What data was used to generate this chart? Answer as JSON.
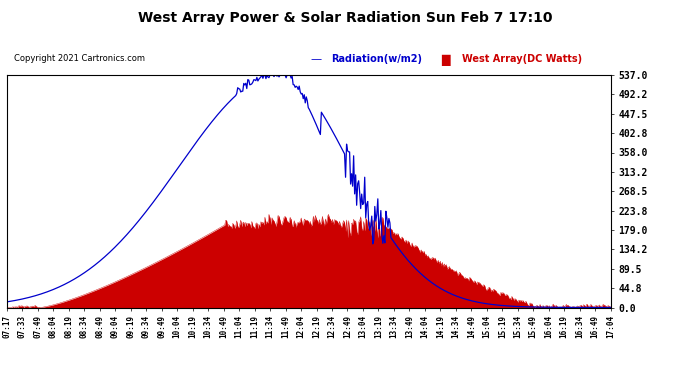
{
  "title": "West Array Power & Solar Radiation Sun Feb 7 17:10",
  "copyright": "Copyright 2021 Cartronics.com",
  "legend_radiation": "Radiation(w/m2)",
  "legend_west": "West Array(DC Watts)",
  "radiation_color": "#0000cc",
  "west_color": "#cc0000",
  "background_color": "#ffffff",
  "plot_bg_color": "#ffffff",
  "grid_color": "#aaaaaa",
  "yticks": [
    0.0,
    44.8,
    89.5,
    134.2,
    179.0,
    223.8,
    268.5,
    313.2,
    358.0,
    402.8,
    447.5,
    492.2,
    537.0
  ],
  "ylim": [
    0.0,
    537.0
  ],
  "xtick_labels": [
    "07:17",
    "07:33",
    "07:49",
    "08:04",
    "08:19",
    "08:34",
    "08:49",
    "09:04",
    "09:19",
    "09:34",
    "09:49",
    "10:04",
    "10:19",
    "10:34",
    "10:49",
    "11:04",
    "11:19",
    "11:34",
    "11:49",
    "12:04",
    "12:19",
    "12:34",
    "12:49",
    "13:04",
    "13:19",
    "13:34",
    "13:49",
    "14:04",
    "14:19",
    "14:34",
    "14:49",
    "15:04",
    "15:19",
    "15:34",
    "15:49",
    "16:04",
    "16:19",
    "16:34",
    "16:49",
    "17:04"
  ]
}
